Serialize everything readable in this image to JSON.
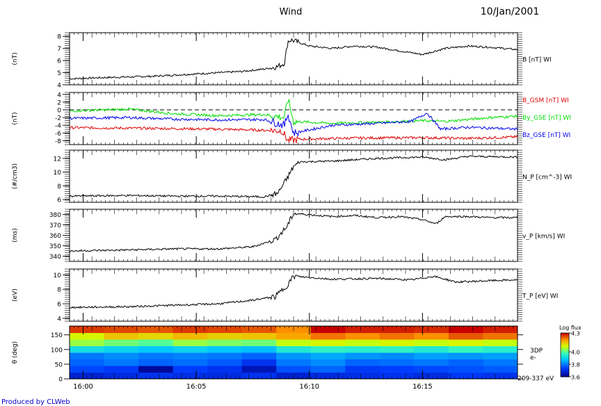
{
  "header": {
    "title": "Wind",
    "date": "10/Jan/2001"
  },
  "footer": {
    "credit": "Produced by CLWeb"
  },
  "time_axis": {
    "ticks": [
      "16:00",
      "16:05",
      "16:10",
      "16:15"
    ],
    "start_min": -0.6,
    "end_min": 19.2
  },
  "chart_data": [
    {
      "type": "line",
      "panel": "B",
      "ylabel": "(nT)",
      "ylim": [
        4,
        8.3
      ],
      "yticks": [
        4,
        5,
        6,
        7,
        8
      ],
      "series": [
        {
          "name": "B [nT] WI",
          "color": "#000000",
          "points": [
            [
              -0.6,
              4.5
            ],
            [
              1,
              4.6
            ],
            [
              3,
              4.7
            ],
            [
              5,
              4.9
            ],
            [
              7,
              5.1
            ],
            [
              8,
              5.3
            ],
            [
              8.6,
              5.5
            ],
            [
              8.9,
              5.8
            ],
            [
              9.05,
              7.6
            ],
            [
              9.2,
              7.7
            ],
            [
              10,
              7.2
            ],
            [
              11,
              7.0
            ],
            [
              12,
              7.2
            ],
            [
              13,
              7.1
            ],
            [
              14,
              6.8
            ],
            [
              15,
              6.5
            ],
            [
              16,
              7.0
            ],
            [
              17,
              7.2
            ],
            [
              18,
              7.1
            ],
            [
              19.2,
              6.9
            ]
          ]
        }
      ]
    },
    {
      "type": "line",
      "panel": "B_GSM",
      "ylabel": "(nT)",
      "ylim": [
        -9,
        4.5
      ],
      "yticks": [
        4,
        2,
        0,
        -2,
        -4,
        -6,
        -8
      ],
      "reference_line": 0,
      "series": [
        {
          "name": "B_GSM [nT] WI",
          "color": "#dd0000",
          "points": [
            [
              -0.6,
              -4.6
            ],
            [
              3,
              -4.8
            ],
            [
              6,
              -5.0
            ],
            [
              8.8,
              -5.4
            ],
            [
              9.05,
              -8.0
            ],
            [
              9.6,
              -7.6
            ],
            [
              12,
              -7.3
            ],
            [
              15,
              -7.2
            ],
            [
              17,
              -7.4
            ],
            [
              19.2,
              -7.0
            ]
          ]
        },
        {
          "name": "By_GSE [nT] WI",
          "color": "#00dd00",
          "points": [
            [
              -0.6,
              -0.3
            ],
            [
              2,
              0.2
            ],
            [
              4,
              -1.0
            ],
            [
              6,
              -1.5
            ],
            [
              8,
              -1.2
            ],
            [
              8.9,
              -2.0
            ],
            [
              9.05,
              3.0
            ],
            [
              9.3,
              -3.0
            ],
            [
              11,
              -3.5
            ],
            [
              13,
              -3.2
            ],
            [
              15,
              -2.8
            ],
            [
              16,
              -3.0
            ],
            [
              18,
              -2.0
            ],
            [
              19.2,
              -1.6
            ]
          ]
        },
        {
          "name": "Bz_GSE [nT] WI",
          "color": "#0000ee",
          "points": [
            [
              -0.6,
              -2.2
            ],
            [
              2,
              -2.0
            ],
            [
              4,
              -2.4
            ],
            [
              6,
              -2.6
            ],
            [
              8,
              -2.5
            ],
            [
              8.9,
              -4.0
            ],
            [
              9.05,
              -1.0
            ],
            [
              9.3,
              -6.0
            ],
            [
              11,
              -4.0
            ],
            [
              13,
              -3.5
            ],
            [
              14.5,
              -3.0
            ],
            [
              15.2,
              -0.8
            ],
            [
              15.8,
              -5.0
            ],
            [
              17,
              -4.5
            ],
            [
              19.2,
              -5.0
            ]
          ]
        }
      ]
    },
    {
      "type": "line",
      "panel": "N_P",
      "ylabel": "(#/cm3)",
      "ylim": [
        5.6,
        13.2
      ],
      "yticks": [
        6,
        8,
        10,
        12
      ],
      "series": [
        {
          "name": "N_P [cm^-3] WI",
          "color": "#000000",
          "points": [
            [
              -0.6,
              6.5
            ],
            [
              2,
              6.6
            ],
            [
              4,
              6.5
            ],
            [
              6,
              6.5
            ],
            [
              8,
              6.4
            ],
            [
              8.6,
              6.9
            ],
            [
              9.0,
              9.0
            ],
            [
              9.3,
              10.8
            ],
            [
              9.6,
              11.5
            ],
            [
              11,
              11.6
            ],
            [
              12,
              11.8
            ],
            [
              13,
              12.0
            ],
            [
              15,
              12.2
            ],
            [
              16,
              11.8
            ],
            [
              17,
              12.3
            ],
            [
              19.2,
              12.2
            ]
          ]
        }
      ]
    },
    {
      "type": "line",
      "panel": "V_P",
      "ylabel": "(ms)",
      "ylim": [
        335,
        385
      ],
      "yticks": [
        340,
        350,
        360,
        370,
        380
      ],
      "series": [
        {
          "name": "v_P [km/s] WI",
          "color": "#000000",
          "points": [
            [
              -0.6,
              345
            ],
            [
              2,
              346
            ],
            [
              4,
              347
            ],
            [
              6,
              347
            ],
            [
              7.5,
              349
            ],
            [
              8.5,
              356
            ],
            [
              9.0,
              368
            ],
            [
              9.3,
              381
            ],
            [
              11,
              378
            ],
            [
              12,
              379
            ],
            [
              13,
              377
            ],
            [
              14,
              378
            ],
            [
              15,
              375
            ],
            [
              15.6,
              371
            ],
            [
              16,
              378
            ],
            [
              17,
              378
            ],
            [
              18,
              377
            ],
            [
              19.2,
              377
            ]
          ]
        }
      ]
    },
    {
      "type": "line",
      "panel": "T_P",
      "ylabel": "(eV)",
      "ylim": [
        3.6,
        10.8
      ],
      "yticks": [
        4,
        6,
        8,
        10
      ],
      "series": [
        {
          "name": "T_P [eV] WI",
          "color": "#000000",
          "points": [
            [
              -0.6,
              5.5
            ],
            [
              2,
              5.6
            ],
            [
              4,
              5.8
            ],
            [
              6,
              6.0
            ],
            [
              7.5,
              6.5
            ],
            [
              8.5,
              7.0
            ],
            [
              9.0,
              8.5
            ],
            [
              9.3,
              9.8
            ],
            [
              11,
              9.4
            ],
            [
              13,
              9.5
            ],
            [
              14.5,
              9.3
            ],
            [
              15.5,
              9.8
            ],
            [
              16.5,
              9.0
            ],
            [
              18,
              9.2
            ],
            [
              19.2,
              9.3
            ]
          ]
        }
      ]
    },
    {
      "type": "heatmap",
      "panel": "3DP",
      "ylabel": "θ (deg)",
      "ylim": [
        0,
        180
      ],
      "yticks": [
        0,
        50,
        100,
        150
      ],
      "side_label": [
        "3DP",
        "e-",
        "209-337 eV"
      ],
      "colorbar": {
        "title": "Log flux",
        "ticks": [
          4.3,
          4.0,
          3.8,
          3.6
        ],
        "range": [
          3.6,
          4.3
        ]
      },
      "x_bins": 13,
      "y_bins": 8,
      "values": [
        [
          3.68,
          3.7,
          3.72,
          3.71,
          3.7,
          3.72,
          3.68,
          3.7,
          3.71,
          3.72,
          3.7,
          3.73,
          3.72
        ],
        [
          3.75,
          3.73,
          3.62,
          3.74,
          3.72,
          3.65,
          3.76,
          3.78,
          3.73,
          3.74,
          3.75,
          3.76,
          3.77
        ],
        [
          3.78,
          3.8,
          3.78,
          3.79,
          3.77,
          3.72,
          3.8,
          3.82,
          3.78,
          3.79,
          3.8,
          3.78,
          3.8
        ],
        [
          3.8,
          3.82,
          3.8,
          3.81,
          3.8,
          3.78,
          3.83,
          3.85,
          3.83,
          3.82,
          3.84,
          3.83,
          3.84
        ],
        [
          3.92,
          3.9,
          3.88,
          3.9,
          3.88,
          3.87,
          3.94,
          3.96,
          3.95,
          3.96,
          3.94,
          3.97,
          3.95
        ],
        [
          4.05,
          4.02,
          4.0,
          4.05,
          4.03,
          4.02,
          4.08,
          4.1,
          4.08,
          4.1,
          4.08,
          4.1,
          4.08
        ],
        [
          4.1,
          4.15,
          4.13,
          4.16,
          4.14,
          4.15,
          4.18,
          4.22,
          4.2,
          4.22,
          4.2,
          4.24,
          4.22
        ],
        [
          4.26,
          4.25,
          4.24,
          4.26,
          4.25,
          4.24,
          4.2,
          4.3,
          4.28,
          4.28,
          4.27,
          4.3,
          4.28
        ]
      ]
    }
  ]
}
